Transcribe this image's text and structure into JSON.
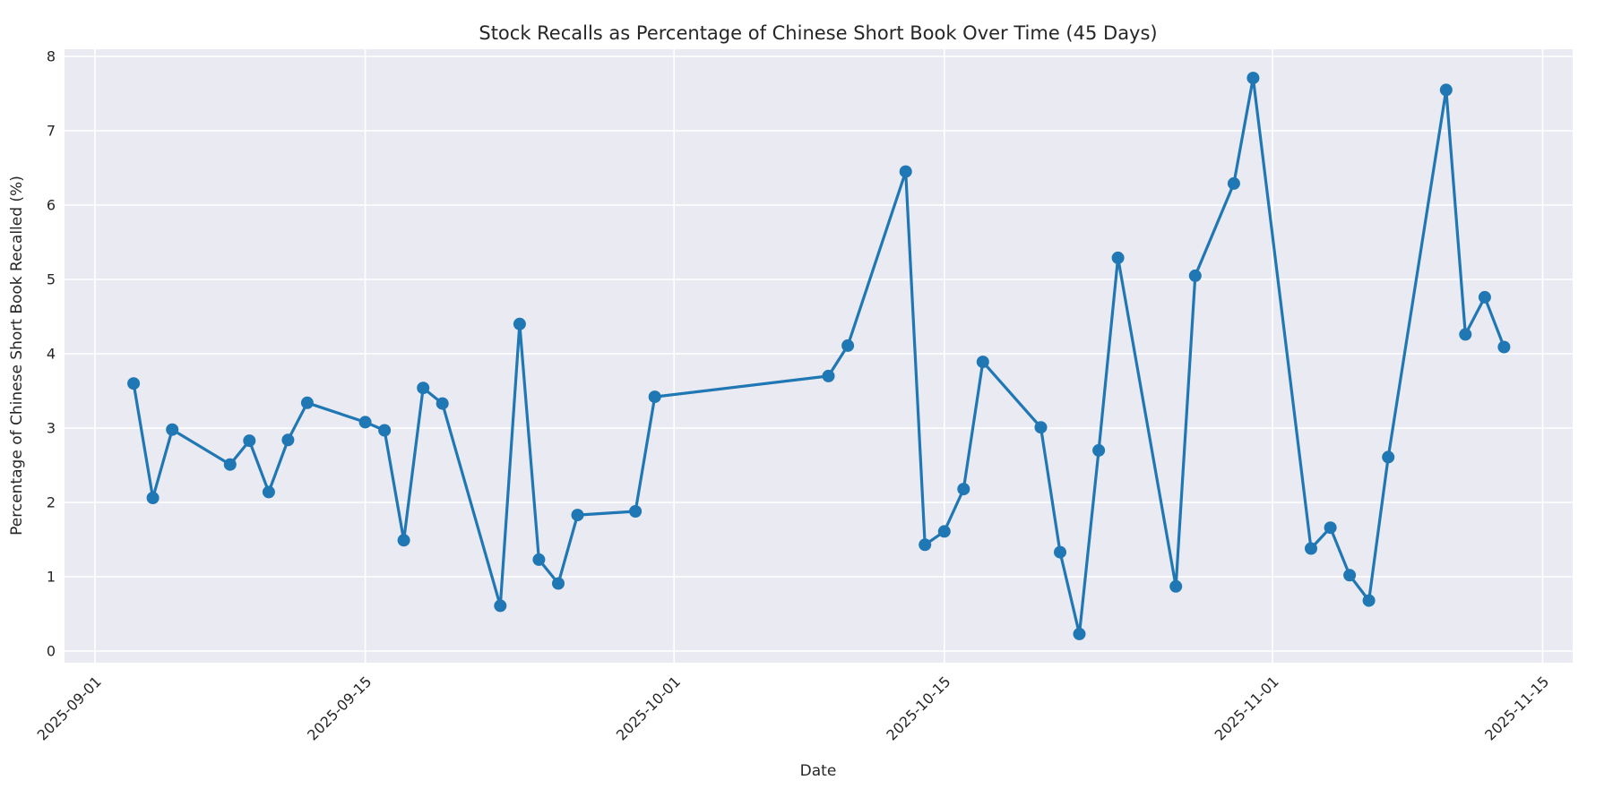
{
  "title": "Stock Recalls as Percentage of Chinese Short Book Over Time (45 Days)",
  "x_axis": {
    "label": "Date",
    "tick_labels": [
      "2025-09-01",
      "2025-09-15",
      "2025-10-01",
      "2025-10-15",
      "2025-11-01",
      "2025-11-15"
    ]
  },
  "y_axis": {
    "label": "Percentage of Chinese Short Book Recalled (%)",
    "tick_labels": [
      "0",
      "1",
      "2",
      "3",
      "4",
      "5",
      "6",
      "7",
      "8"
    ]
  },
  "colors": {
    "line": "#1f77b4",
    "marker": "#1f77b4",
    "plot_background": "#eaeaf2",
    "grid": "#ffffff",
    "text": "#262626",
    "figure_background": "#ffffff"
  },
  "chart_data": {
    "type": "line",
    "title": "Stock Recalls as Percentage of Chinese Short Book Over Time (45 Days)",
    "xlabel": "Date",
    "ylabel": "Percentage of Chinese Short Book Recalled (%)",
    "ylim": [
      -0.16,
      8.1
    ],
    "x_domain": [
      "2025-08-30",
      "2025-11-17"
    ],
    "x_ticks": [
      "2025-09-01",
      "2025-09-15",
      "2025-10-01",
      "2025-10-15",
      "2025-11-01",
      "2025-11-15"
    ],
    "y_ticks": [
      0,
      1,
      2,
      3,
      4,
      5,
      6,
      7,
      8
    ],
    "grid": true,
    "legend": false,
    "x": [
      "2025-09-03",
      "2025-09-04",
      "2025-09-05",
      "2025-09-08",
      "2025-09-09",
      "2025-09-10",
      "2025-09-11",
      "2025-09-12",
      "2025-09-15",
      "2025-09-16",
      "2025-09-17",
      "2025-09-18",
      "2025-09-19",
      "2025-09-22",
      "2025-09-23",
      "2025-09-24",
      "2025-09-25",
      "2025-09-26",
      "2025-09-29",
      "2025-09-30",
      "2025-10-09",
      "2025-10-10",
      "2025-10-13",
      "2025-10-14",
      "2025-10-15",
      "2025-10-16",
      "2025-10-17",
      "2025-10-20",
      "2025-10-21",
      "2025-10-22",
      "2025-10-23",
      "2025-10-24",
      "2025-10-27",
      "2025-10-28",
      "2025-10-30",
      "2025-10-31",
      "2025-11-03",
      "2025-11-04",
      "2025-11-05",
      "2025-11-06",
      "2025-11-07",
      "2025-11-10",
      "2025-11-11",
      "2025-11-12",
      "2025-11-13"
    ],
    "y": [
      3.6,
      2.06,
      2.98,
      2.51,
      2.83,
      2.14,
      2.84,
      3.34,
      3.08,
      2.97,
      1.49,
      3.54,
      3.33,
      0.61,
      4.4,
      1.23,
      0.91,
      1.83,
      1.88,
      3.42,
      3.7,
      4.11,
      6.45,
      1.43,
      1.61,
      2.18,
      3.89,
      3.01,
      1.33,
      0.23,
      2.7,
      5.29,
      0.87,
      5.05,
      6.29,
      7.71,
      1.38,
      1.66,
      1.02,
      0.68,
      2.61,
      7.55,
      4.26,
      4.76,
      4.09
    ]
  }
}
